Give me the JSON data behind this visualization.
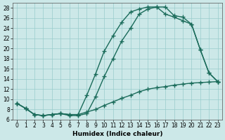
{
  "xlabel": "Humidex (Indice chaleur)",
  "bg_color": "#cce8e8",
  "grid_color": "#99cccc",
  "line_color": "#1a6b5a",
  "xlim": [
    -0.5,
    23.5
  ],
  "ylim": [
    6,
    29
  ],
  "xticks": [
    0,
    1,
    2,
    3,
    4,
    5,
    6,
    7,
    8,
    9,
    10,
    11,
    12,
    13,
    14,
    15,
    16,
    17,
    18,
    19,
    20,
    21,
    22,
    23
  ],
  "yticks": [
    6,
    8,
    10,
    12,
    14,
    16,
    18,
    20,
    22,
    24,
    26,
    28
  ],
  "curve1_x": [
    0,
    1,
    2,
    3,
    4,
    5,
    6,
    7,
    8,
    9,
    10,
    11,
    12,
    13,
    14,
    15,
    16,
    17,
    18,
    19,
    20,
    21,
    22,
    23
  ],
  "curve1_y": [
    9.2,
    8.2,
    7.0,
    6.8,
    7.0,
    7.2,
    7.0,
    7.0,
    7.5,
    8.0,
    8.8,
    9.5,
    10.2,
    10.8,
    11.5,
    12.0,
    12.3,
    12.5,
    12.8,
    13.0,
    13.2,
    13.3,
    13.4,
    13.5
  ],
  "curve2_x": [
    0,
    1,
    2,
    3,
    4,
    5,
    6,
    7,
    8,
    9,
    10,
    11,
    12,
    13,
    14,
    15,
    16,
    17,
    18,
    19,
    20,
    21,
    22,
    23
  ],
  "curve2_y": [
    9.2,
    8.2,
    7.0,
    6.8,
    7.0,
    7.2,
    7.0,
    7.0,
    10.8,
    15.0,
    19.5,
    22.5,
    25.2,
    27.2,
    27.8,
    28.2,
    28.2,
    28.2,
    26.5,
    26.2,
    24.8,
    19.8,
    15.2,
    13.5
  ],
  "curve3_x": [
    0,
    1,
    2,
    3,
    4,
    5,
    6,
    7,
    8,
    9,
    10,
    11,
    12,
    13,
    14,
    15,
    16,
    17,
    18,
    19,
    20,
    21,
    22,
    23
  ],
  "curve3_y": [
    9.2,
    8.2,
    7.0,
    6.8,
    7.0,
    7.2,
    6.8,
    6.8,
    7.2,
    10.5,
    14.5,
    18.0,
    21.5,
    24.0,
    26.8,
    27.8,
    28.2,
    26.8,
    26.2,
    25.5,
    24.8,
    19.8,
    15.2,
    13.5
  ],
  "marker": "+",
  "markersize": 4,
  "markeredgewidth": 1.0,
  "linewidth": 1.0,
  "tick_labelsize": 5.5,
  "xlabel_fontsize": 6.5
}
